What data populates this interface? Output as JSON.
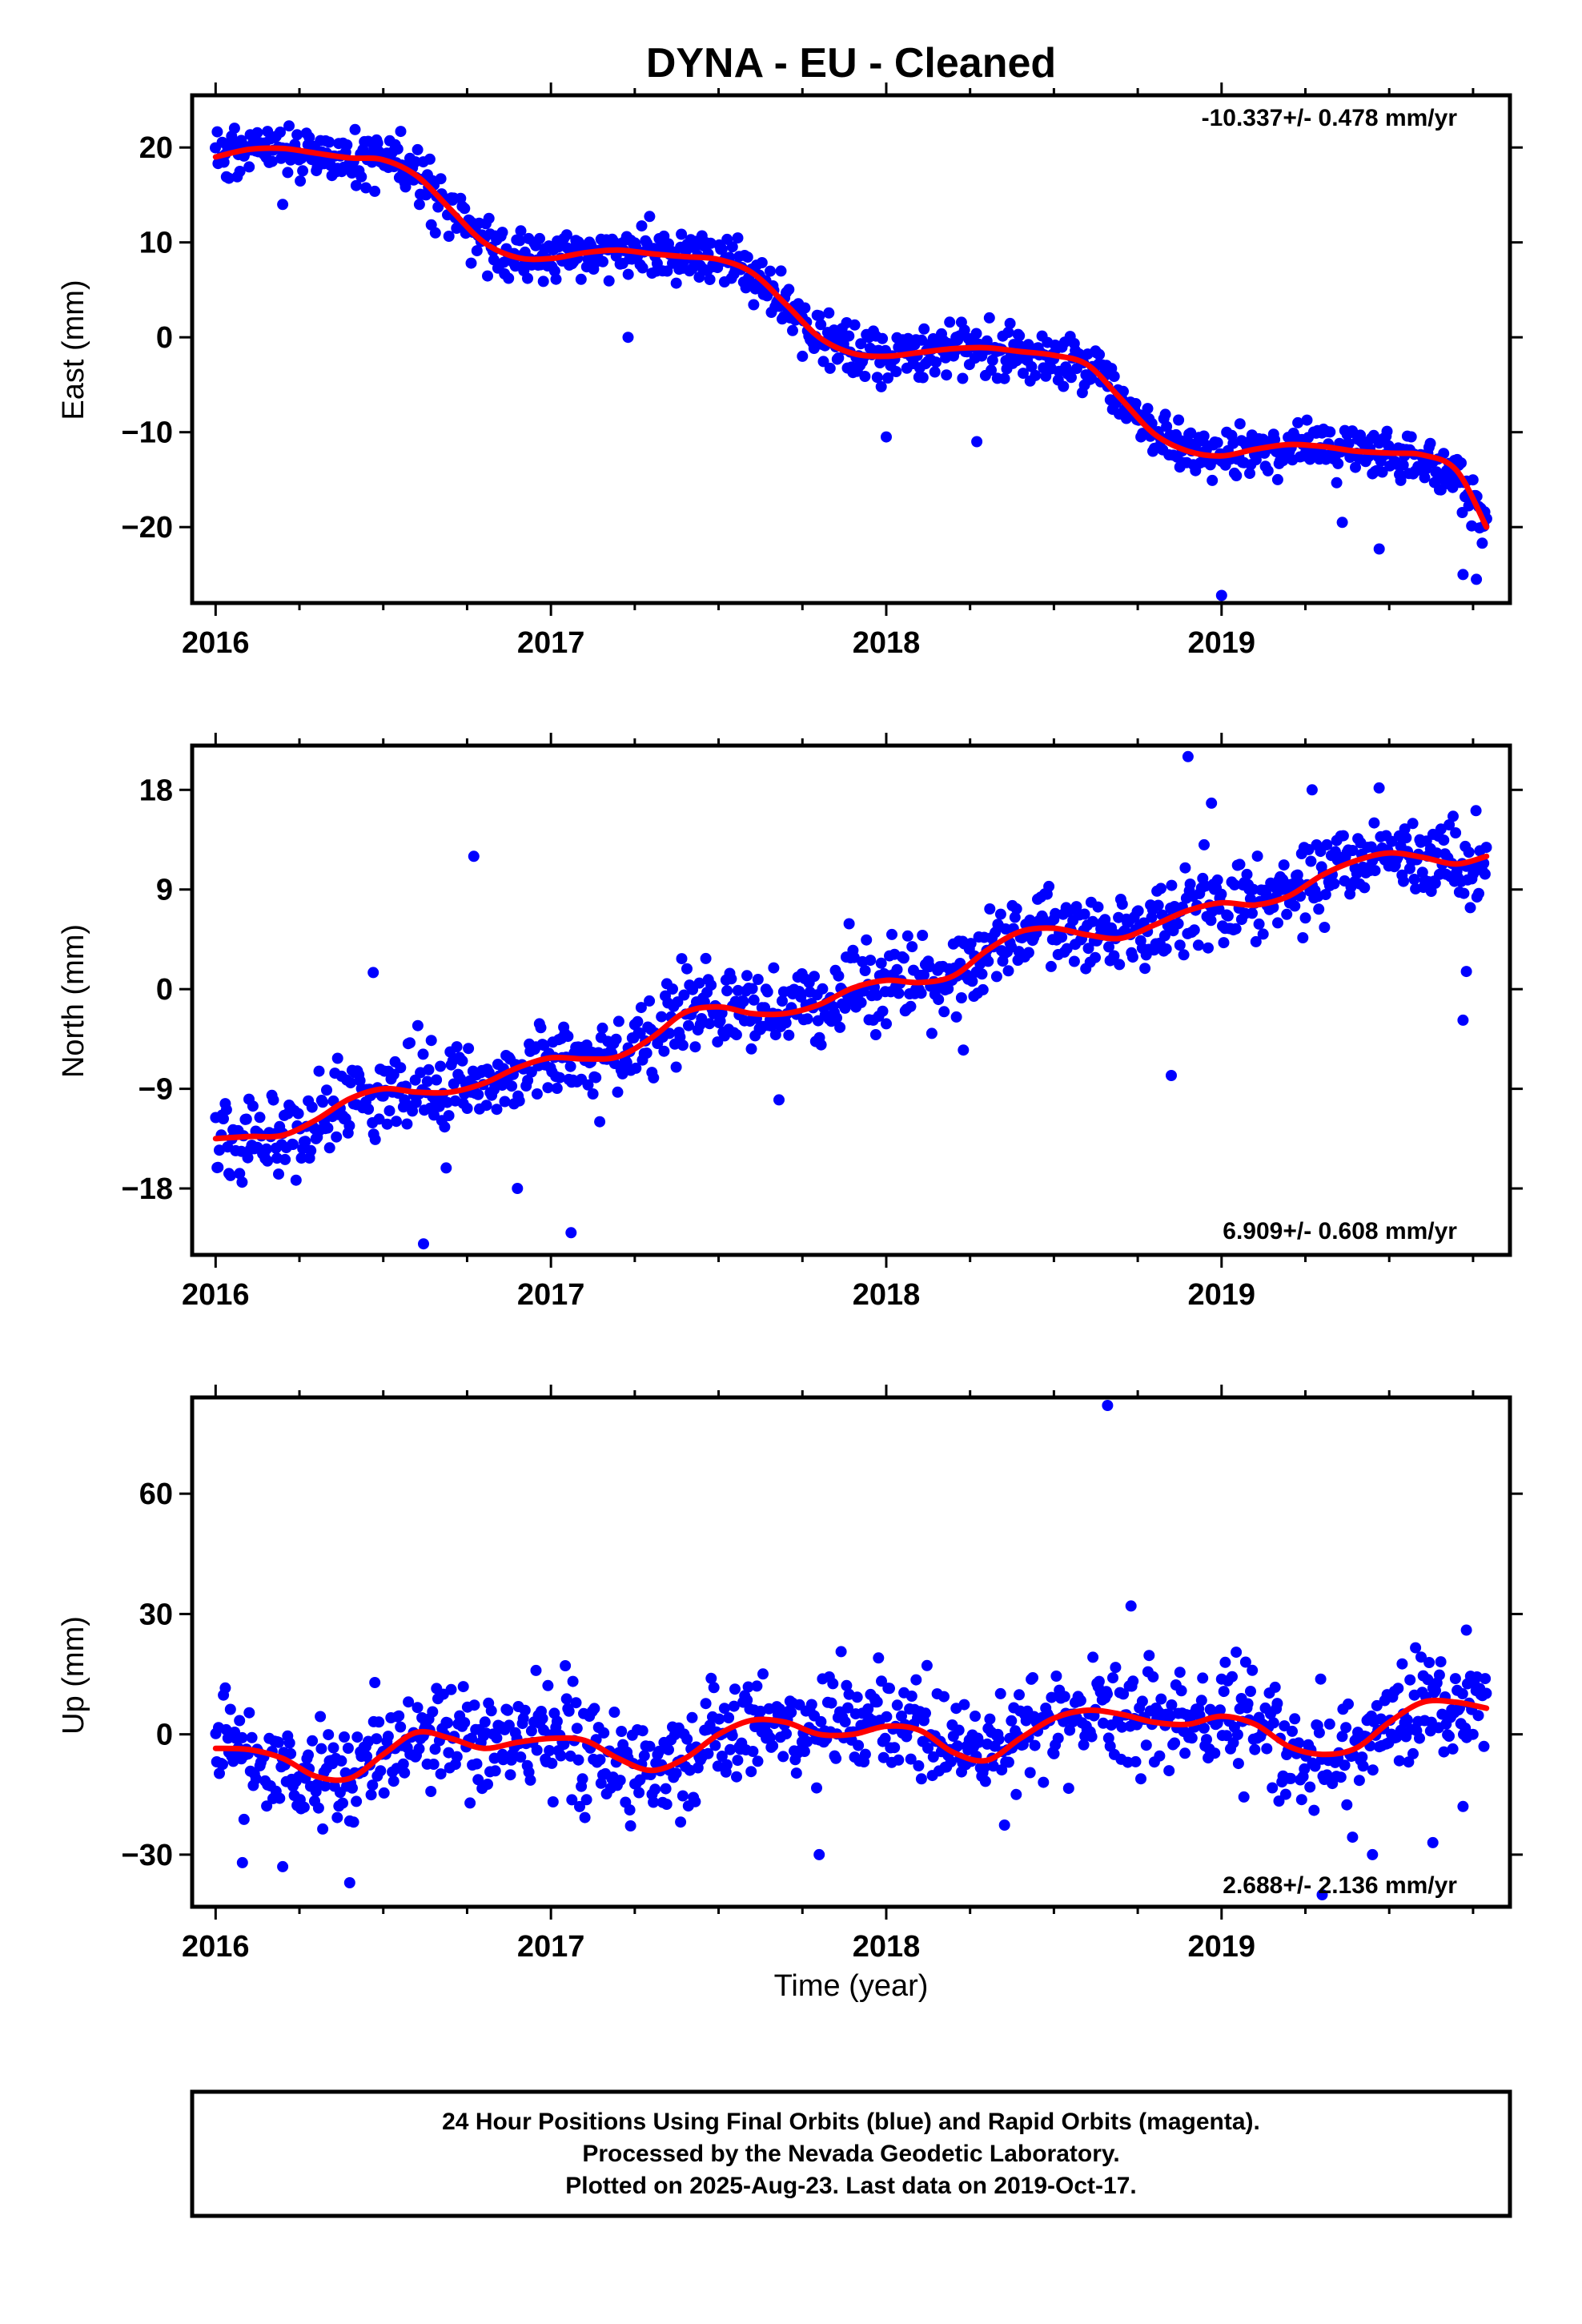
{
  "title": "DYNA  - EU - Cleaned",
  "xlabel": "Time (year)",
  "footer": {
    "line1": "24 Hour Positions Using Final Orbits (blue) and Rapid Orbits (magenta).",
    "line2": "Processed by the Nevada Geodetic Laboratory.",
    "line3": "Plotted on 2025-Aug-23. Last data on 2019-Oct-17."
  },
  "colors": {
    "points": "#0000ff",
    "fit": "#ff0000",
    "frame": "#000000"
  },
  "chart_data": [
    {
      "type": "scatter",
      "ylabel": "East (mm)",
      "rate_text": "-10.337+/- 0.478 mm/yr",
      "xlim": [
        2015.93,
        2019.86
      ],
      "ylim": [
        -28,
        25.5
      ],
      "xticks": [
        2016,
        2017,
        2018,
        2019
      ],
      "yticks": [
        -20,
        -10,
        0,
        10,
        20
      ],
      "ytick_labels": [
        "−20",
        "−10",
        "0",
        "10",
        "20"
      ],
      "grid": false,
      "series": [
        {
          "kind": "points",
          "x_start": 2016.0,
          "x_end": 2019.79,
          "n": 950,
          "noise_sd": 1.4,
          "outliers": [
            [
              2016.2,
              14
            ],
            [
              2017.23,
              0
            ],
            [
              2017.75,
              -2
            ],
            [
              2018.0,
              -10.5
            ],
            [
              2018.27,
              -11
            ],
            [
              2019.0,
              -27.2
            ],
            [
              2019.36,
              -19.5
            ],
            [
              2019.47,
              -22.3
            ],
            [
              2019.72,
              -25
            ],
            [
              2019.76,
              -25.5
            ]
          ]
        },
        {
          "kind": "fit",
          "x": [
            2016.0,
            2016.1,
            2016.2,
            2016.3,
            2016.4,
            2016.5,
            2016.6,
            2016.7,
            2016.8,
            2016.9,
            2017.0,
            2017.1,
            2017.2,
            2017.3,
            2017.4,
            2017.5,
            2017.6,
            2017.7,
            2017.8,
            2017.9,
            2018.0,
            2018.1,
            2018.2,
            2018.3,
            2018.4,
            2018.5,
            2018.6,
            2018.7,
            2018.8,
            2018.9,
            2019.0,
            2019.1,
            2019.2,
            2019.3,
            2019.4,
            2019.5,
            2019.6,
            2019.7,
            2019.79
          ],
          "y": [
            19,
            19.8,
            19.9,
            19.4,
            18.9,
            18.7,
            17,
            13.5,
            10,
            8.4,
            8.3,
            8.9,
            9.2,
            8.8,
            8.5,
            8.2,
            6.8,
            3.5,
            0,
            -1.7,
            -2,
            -1.6,
            -1.2,
            -1.1,
            -1.5,
            -1.9,
            -2.9,
            -6.5,
            -10.2,
            -12,
            -12.5,
            -11.8,
            -11.3,
            -11.5,
            -12,
            -12.2,
            -12.4,
            -14,
            -20
          ]
        }
      ]
    },
    {
      "type": "scatter",
      "ylabel": "North (mm)",
      "rate_text": "6.909+/- 0.608 mm/yr",
      "xlim": [
        2015.93,
        2019.86
      ],
      "ylim": [
        -24,
        22
      ],
      "xticks": [
        2016,
        2017,
        2018,
        2019
      ],
      "yticks": [
        -18,
        -9,
        0,
        9,
        18
      ],
      "ytick_labels": [
        "−18",
        "−9",
        "0",
        "9",
        "18"
      ],
      "grid": false,
      "series": [
        {
          "kind": "points",
          "x_start": 2016.0,
          "x_end": 2019.79,
          "n": 950,
          "noise_sd": 1.9,
          "outliers": [
            [
              2016.47,
              1.5
            ],
            [
              2016.62,
              -23
            ],
            [
              2016.77,
              12
            ],
            [
              2016.9,
              -18
            ],
            [
              2017.06,
              -22
            ],
            [
              2017.68,
              -10
            ],
            [
              2018.23,
              -5.5
            ],
            [
              2018.85,
              -7.8
            ],
            [
              2018.9,
              21
            ],
            [
              2018.97,
              16.8
            ],
            [
              2019.27,
              18
            ],
            [
              2019.72,
              -2.8
            ],
            [
              2019.73,
              1.6
            ]
          ]
        },
        {
          "kind": "fit",
          "x": [
            2016.0,
            2016.1,
            2016.2,
            2016.3,
            2016.4,
            2016.5,
            2016.6,
            2016.7,
            2016.8,
            2016.9,
            2017.0,
            2017.1,
            2017.2,
            2017.3,
            2017.4,
            2017.5,
            2017.6,
            2017.7,
            2017.8,
            2017.9,
            2018.0,
            2018.1,
            2018.2,
            2018.3,
            2018.4,
            2018.5,
            2018.6,
            2018.7,
            2018.8,
            2018.9,
            2019.0,
            2019.1,
            2019.2,
            2019.3,
            2019.4,
            2019.5,
            2019.6,
            2019.7,
            2019.79
          ],
          "y": [
            -13.5,
            -13.3,
            -13.2,
            -11.8,
            -9.9,
            -9,
            -9.3,
            -9.3,
            -8.5,
            -7.1,
            -6.2,
            -6.3,
            -6.1,
            -4.4,
            -2.1,
            -1.6,
            -2.2,
            -2.2,
            -1.4,
            0.1,
            0.8,
            0.6,
            1.2,
            3.5,
            5.2,
            5.5,
            4.9,
            4.6,
            5.8,
            7.1,
            7.8,
            7.6,
            8.4,
            10.3,
            11.6,
            12.3,
            11.9,
            11.3,
            12
          ]
        }
      ]
    },
    {
      "type": "scatter",
      "ylabel": "Up (mm)",
      "rate_text": "2.688+/- 2.136 mm/yr",
      "xlim": [
        2015.93,
        2019.86
      ],
      "ylim": [
        -43,
        84
      ],
      "xticks": [
        2016,
        2017,
        2018,
        2019
      ],
      "yticks": [
        -30,
        0,
        30,
        60
      ],
      "ytick_labels": [
        "−30",
        "0",
        "30",
        "60"
      ],
      "grid": false,
      "series": [
        {
          "kind": "points",
          "x_start": 2016.0,
          "x_end": 2019.79,
          "n": 950,
          "noise_sd": 6.5,
          "outliers": [
            [
              2016.08,
              -32
            ],
            [
              2016.2,
              -33
            ],
            [
              2016.4,
              -37
            ],
            [
              2017.8,
              -30
            ],
            [
              2018.66,
              82
            ],
            [
              2018.73,
              32
            ],
            [
              2019.3,
              -40
            ],
            [
              2019.45,
              -30
            ],
            [
              2019.63,
              -27
            ],
            [
              2019.72,
              -18
            ],
            [
              2019.73,
              26
            ]
          ]
        },
        {
          "kind": "fit",
          "x": [
            2016.0,
            2016.1,
            2016.2,
            2016.3,
            2016.4,
            2016.5,
            2016.6,
            2016.7,
            2016.8,
            2016.9,
            2017.0,
            2017.1,
            2017.2,
            2017.3,
            2017.4,
            2017.5,
            2017.6,
            2017.7,
            2017.8,
            2017.9,
            2018.0,
            2018.1,
            2018.2,
            2018.3,
            2018.4,
            2018.5,
            2018.6,
            2018.7,
            2018.8,
            2018.9,
            2019.0,
            2019.1,
            2019.2,
            2019.3,
            2019.4,
            2019.5,
            2019.6,
            2019.7,
            2019.79
          ],
          "y": [
            -3.5,
            -3.8,
            -6,
            -10.5,
            -11,
            -5,
            0.5,
            -1,
            -3.5,
            -2,
            -1,
            -1.5,
            -6,
            -9,
            -6,
            0,
            3.5,
            3,
            0,
            0,
            2,
            1,
            -4.5,
            -6.5,
            -1,
            4,
            6,
            5,
            3,
            2.5,
            4.5,
            2.5,
            -3,
            -5,
            -3.5,
            3,
            8,
            8,
            6.5
          ]
        }
      ]
    }
  ]
}
